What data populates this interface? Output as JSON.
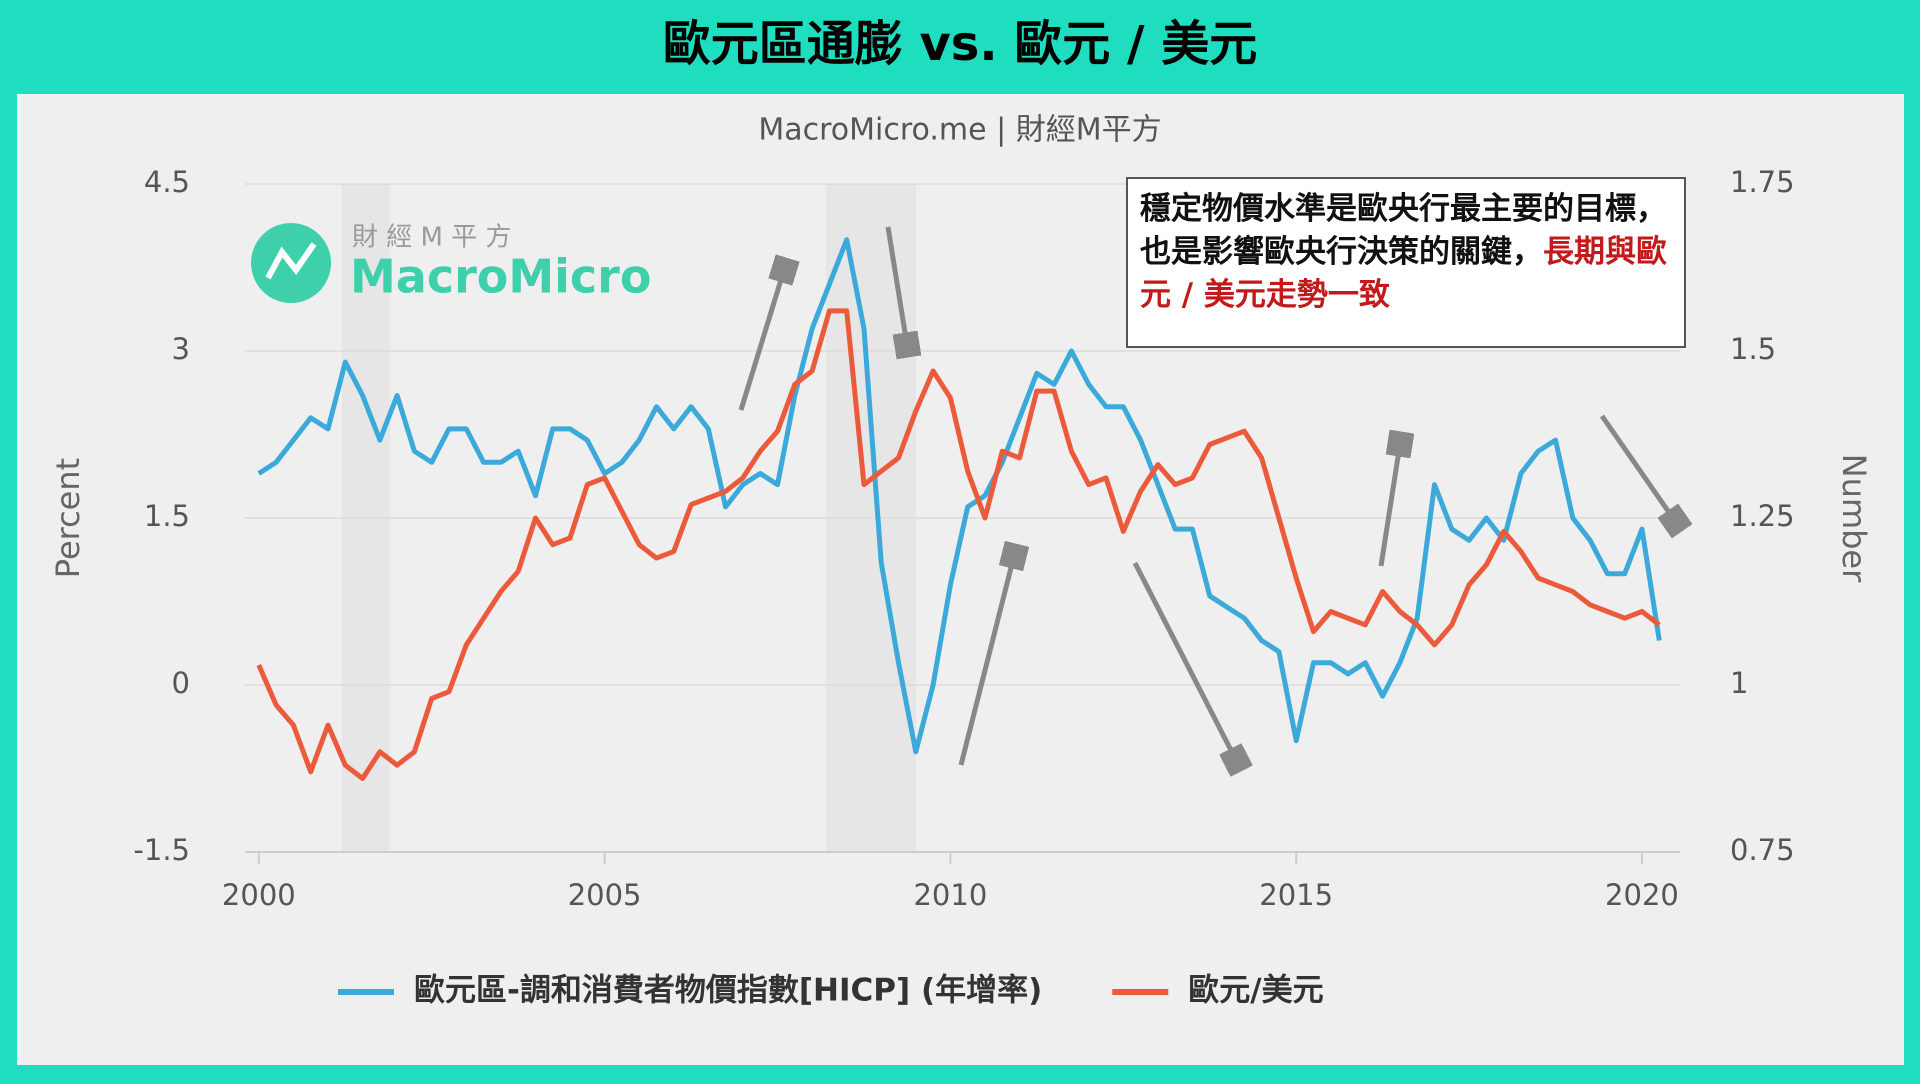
{
  "chart_data": {
    "type": "line",
    "title": "歐元區通膨 vs. 歐元 / 美元",
    "subtitle": "MacroMicro.me | 財經M平方",
    "watermark": {
      "brand_cn": "財 經 M 平 方",
      "brand_en": "MacroMicro"
    },
    "y_label": "Percent",
    "y2_label": "Number",
    "annotation": {
      "text": "穩定物價水準是歐央行最主要的目標，也是影響歐央行決策的關鍵，",
      "highlight": "長期與歐元 / 美元走勢一致"
    },
    "x": [
      2000,
      2000.25,
      2000.5,
      2000.75,
      2001,
      2001.25,
      2001.5,
      2001.75,
      2002,
      2002.25,
      2002.5,
      2002.75,
      2003,
      2003.25,
      2003.5,
      2003.75,
      2004,
      2004.25,
      2004.5,
      2004.75,
      2005,
      2005.25,
      2005.5,
      2005.75,
      2006,
      2006.25,
      2006.5,
      2006.75,
      2007,
      2007.25,
      2007.5,
      2007.75,
      2008,
      2008.25,
      2008.5,
      2008.75,
      2009,
      2009.25,
      2009.5,
      2009.75,
      2010,
      2010.25,
      2010.5,
      2010.75,
      2011,
      2011.25,
      2011.5,
      2011.75,
      2012,
      2012.25,
      2012.5,
      2012.75,
      2013,
      2013.25,
      2013.5,
      2013.75,
      2014,
      2014.25,
      2014.5,
      2014.75,
      2015,
      2015.25,
      2015.5,
      2015.75,
      2016,
      2016.25,
      2016.5,
      2016.75,
      2017,
      2017.25,
      2017.5,
      2017.75,
      2018,
      2018.25,
      2018.5,
      2018.75,
      2019,
      2019.25,
      2019.5,
      2019.75,
      2020,
      2020.25
    ],
    "series": [
      {
        "name": "歐元區-調和消費者物價指數[HICP] (年增率)",
        "color": "#3ba9d9",
        "axis": "y",
        "values": [
          1.9,
          2.0,
          2.2,
          2.4,
          2.3,
          2.9,
          2.6,
          2.2,
          2.6,
          2.1,
          2.0,
          2.3,
          2.3,
          2.0,
          2.0,
          2.1,
          1.7,
          2.3,
          2.3,
          2.2,
          1.9,
          2.0,
          2.2,
          2.5,
          2.3,
          2.5,
          2.3,
          1.6,
          1.8,
          1.9,
          1.8,
          2.6,
          3.2,
          3.6,
          4.0,
          3.2,
          1.1,
          0.2,
          -0.6,
          0.0,
          0.9,
          1.6,
          1.7,
          2.0,
          2.4,
          2.8,
          2.7,
          3.0,
          2.7,
          2.5,
          2.5,
          2.2,
          1.8,
          1.4,
          1.4,
          0.8,
          0.7,
          0.6,
          0.4,
          0.3,
          -0.5,
          0.2,
          0.2,
          0.1,
          0.2,
          -0.1,
          0.2,
          0.6,
          1.8,
          1.4,
          1.3,
          1.5,
          1.3,
          1.9,
          2.1,
          2.2,
          1.5,
          1.3,
          1.0,
          1.0,
          1.4,
          0.4
        ]
      },
      {
        "name": "歐元/美元",
        "color": "#ec5a3c",
        "axis": "y2",
        "values": [
          1.03,
          0.97,
          0.94,
          0.87,
          0.94,
          0.88,
          0.86,
          0.9,
          0.88,
          0.9,
          0.98,
          0.99,
          1.06,
          1.1,
          1.14,
          1.17,
          1.25,
          1.21,
          1.22,
          1.3,
          1.31,
          1.26,
          1.21,
          1.19,
          1.2,
          1.27,
          1.28,
          1.29,
          1.31,
          1.35,
          1.38,
          1.45,
          1.47,
          1.56,
          1.56,
          1.3,
          1.32,
          1.34,
          1.41,
          1.47,
          1.43,
          1.32,
          1.25,
          1.35,
          1.34,
          1.44,
          1.44,
          1.35,
          1.3,
          1.31,
          1.23,
          1.29,
          1.33,
          1.3,
          1.31,
          1.36,
          1.37,
          1.38,
          1.34,
          1.25,
          1.16,
          1.08,
          1.11,
          1.1,
          1.09,
          1.14,
          1.11,
          1.09,
          1.06,
          1.09,
          1.15,
          1.18,
          1.23,
          1.2,
          1.16,
          1.15,
          1.14,
          1.12,
          1.11,
          1.1,
          1.11,
          1.09
        ]
      }
    ],
    "shaded_periods": [
      [
        2001.2,
        2001.9
      ],
      [
        2008.2,
        2009.5
      ]
    ],
    "xlim": [
      1999.8,
      2020.55
    ],
    "xticks": [
      2000,
      2005,
      2010,
      2015,
      2020
    ],
    "ylim": [
      -1.5,
      4.5
    ],
    "yticks": [
      -1.5,
      0,
      1.5,
      3,
      4.5
    ],
    "y2lim": [
      0.75,
      1.75
    ],
    "y2ticks": [
      0.75,
      1,
      1.25,
      1.5,
      1.75
    ],
    "grid": true
  }
}
